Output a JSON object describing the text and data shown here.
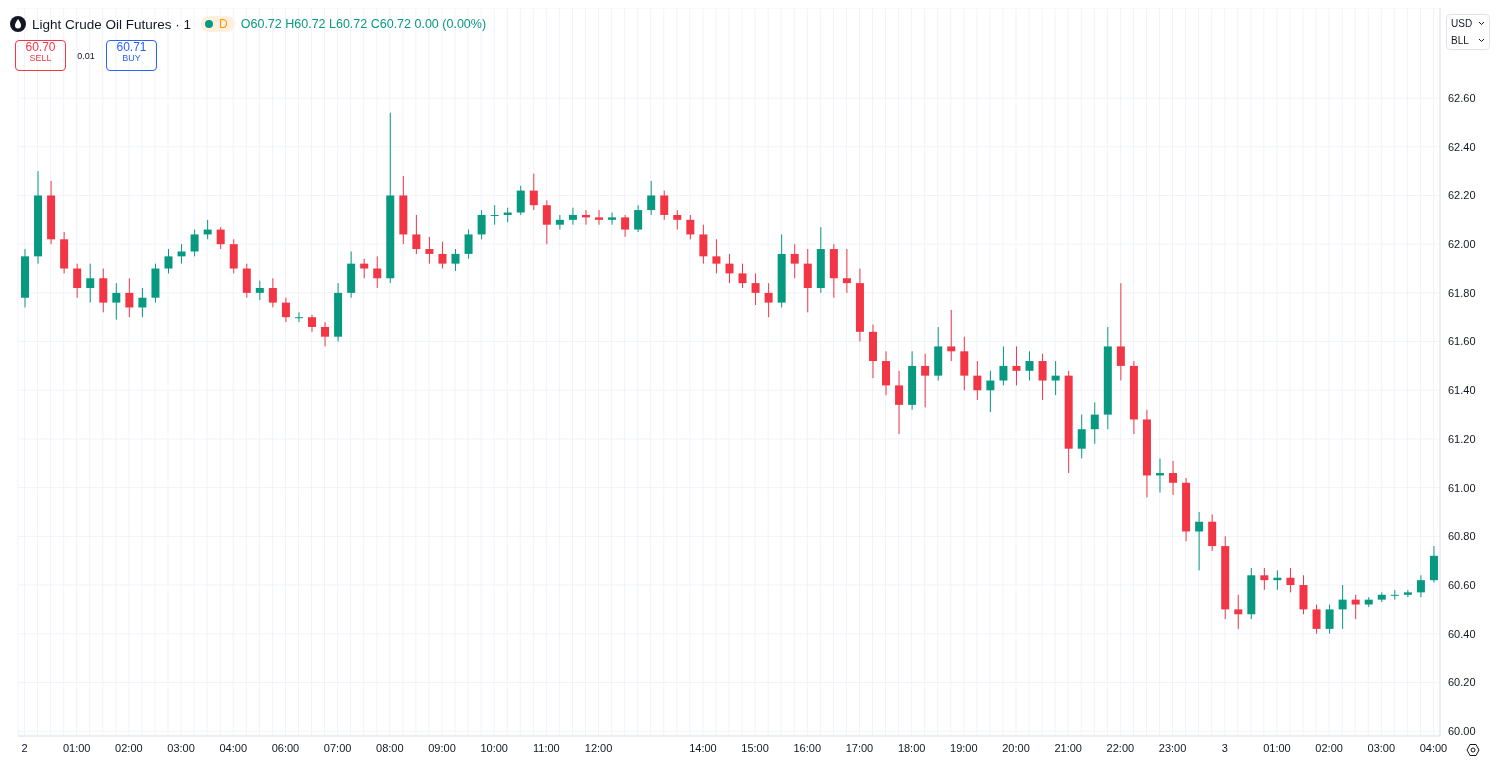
{
  "chart_data": {
    "type": "candlestick",
    "title": "Light Crude Oil Futures · 1",
    "annotations": [
      "D",
      "O60.72 H60.72 L60.72 C60.72 0.00 (0.00%)",
      "60.70",
      "SELL",
      "0.01",
      "60.71",
      "BUY",
      "USD",
      "BLL"
    ],
    "colors": [
      "#089981",
      "#089981",
      "#f23645",
      "#f23645",
      "#f23645",
      "#089981",
      "#f23645",
      "#089981",
      "#f23645",
      "#089981",
      "#089981",
      "#089981",
      "#089981",
      "#089981",
      "#089981",
      "#f23645",
      "#f23645",
      "#f23645",
      "#089981",
      "#f23645",
      "#f23645",
      "#089981",
      "#f23645",
      "#f23645",
      "#089981",
      "#089981",
      "#f23645",
      "#f23645",
      "#089981",
      "#f23645",
      "#f23645",
      "#f23645",
      "#f23645",
      "#089981",
      "#089981",
      "#089981",
      "#089981",
      "#089981",
      "#089981",
      "#f23645",
      "#f23645",
      "#089981",
      "#089981",
      "#f23645",
      "#f23645",
      "#089981",
      "#f23645",
      "#089981",
      "#089981",
      "#f23645",
      "#f23645",
      "#f23645",
      "#f23645",
      "#f23645",
      "#f23645",
      "#f23645",
      "#f23645",
      "#f23645",
      "#089981",
      "#f23645",
      "#f23645",
      "#089981",
      "#f23645",
      "#f23645",
      "#f23645",
      "#f23645",
      "#f23645",
      "#f23645",
      "#089981",
      "#f23645",
      "#089981",
      "#f23645",
      "#f23645",
      "#f23645",
      "#089981",
      "#089981",
      "#f23645",
      "#089981",
      "#f23645",
      "#089981",
      "#f23645",
      "#089981",
      "#089981",
      "#089981",
      "#f23645",
      "#f23645",
      "#f23645",
      "#089981",
      "#f23645",
      "#f23645",
      "#089981",
      "#f23645",
      "#f23645",
      "#f23645",
      "#089981",
      "#f23645",
      "#089981",
      "#f23645",
      "#f23645",
      "#f23645",
      "#089981",
      "#089981",
      "#f23645",
      "#089981",
      "#089981",
      "#089981",
      "#089981",
      "#089981",
      "#089981"
    ],
    "categories": [
      "2",
      null,
      null,
      null,
      "01:00",
      null,
      null,
      null,
      "02:00",
      null,
      null,
      null,
      "03:00",
      null,
      null,
      null,
      "04:00",
      null,
      null,
      null,
      "06:00",
      null,
      null,
      null,
      "07:00",
      null,
      null,
      null,
      "08:00",
      null,
      null,
      null,
      "09:00",
      null,
      null,
      null,
      "10:00",
      null,
      null,
      null,
      "11:00",
      null,
      null,
      null,
      "12:00",
      null,
      null,
      null,
      null,
      null,
      null,
      null,
      "14:00",
      null,
      null,
      null,
      "15:00",
      null,
      null,
      null,
      "16:00",
      null,
      null,
      null,
      "17:00",
      null,
      null,
      null,
      "18:00",
      null,
      null,
      null,
      "19:00",
      null,
      null,
      null,
      "20:00",
      null,
      null,
      null,
      "21:00",
      null,
      null,
      null,
      "22:00",
      null,
      null,
      null,
      "23:00",
      null,
      null,
      null,
      "3",
      null,
      null,
      null,
      "01:00",
      null,
      null,
      null,
      "02:00",
      null,
      null,
      null,
      "03:00",
      null,
      null,
      null,
      "04:00"
    ],
    "ohlc": [
      [
        61.78,
        61.98,
        61.74,
        61.95
      ],
      [
        61.95,
        62.3,
        61.92,
        62.2
      ],
      [
        62.2,
        62.26,
        62.0,
        62.02
      ],
      [
        62.02,
        62.05,
        61.88,
        61.9
      ],
      [
        61.9,
        61.92,
        61.78,
        61.82
      ],
      [
        61.82,
        61.92,
        61.76,
        61.86
      ],
      [
        61.86,
        61.9,
        61.72,
        61.76
      ],
      [
        61.76,
        61.84,
        61.69,
        61.8
      ],
      [
        61.8,
        61.86,
        61.7,
        61.74
      ],
      [
        61.74,
        61.82,
        61.7,
        61.78
      ],
      [
        61.78,
        61.92,
        61.76,
        61.9
      ],
      [
        61.9,
        61.98,
        61.88,
        61.95
      ],
      [
        61.95,
        62.0,
        61.92,
        61.97
      ],
      [
        61.97,
        62.06,
        61.95,
        62.04
      ],
      [
        62.04,
        62.1,
        62.02,
        62.06
      ],
      [
        62.06,
        62.07,
        61.98,
        62.0
      ],
      [
        62.0,
        62.02,
        61.88,
        61.9
      ],
      [
        61.9,
        61.92,
        61.78,
        61.8
      ],
      [
        61.8,
        61.85,
        61.77,
        61.82
      ],
      [
        61.82,
        61.86,
        61.74,
        61.76
      ],
      [
        61.76,
        61.78,
        61.68,
        61.7
      ],
      [
        61.7,
        61.72,
        61.68,
        61.7
      ],
      [
        61.7,
        61.71,
        61.64,
        61.66
      ],
      [
        61.66,
        61.68,
        61.58,
        61.62
      ],
      [
        61.62,
        61.84,
        61.6,
        61.8
      ],
      [
        61.8,
        61.97,
        61.78,
        61.92
      ],
      [
        61.92,
        61.94,
        61.86,
        61.9
      ],
      [
        61.9,
        61.95,
        61.82,
        61.86
      ],
      [
        61.86,
        62.54,
        61.84,
        62.2
      ],
      [
        62.2,
        62.28,
        62.0,
        62.04
      ],
      [
        62.04,
        62.12,
        61.96,
        61.98
      ],
      [
        61.98,
        62.03,
        61.92,
        61.96
      ],
      [
        61.96,
        62.01,
        61.9,
        61.92
      ],
      [
        61.92,
        61.98,
        61.89,
        61.96
      ],
      [
        61.96,
        62.06,
        61.94,
        62.04
      ],
      [
        62.04,
        62.14,
        62.02,
        62.12
      ],
      [
        62.12,
        62.16,
        62.08,
        62.12
      ],
      [
        62.12,
        62.15,
        62.09,
        62.13
      ],
      [
        62.13,
        62.24,
        62.12,
        62.22
      ],
      [
        62.22,
        62.29,
        62.14,
        62.16
      ],
      [
        62.16,
        62.18,
        62.0,
        62.08
      ],
      [
        62.08,
        62.12,
        62.06,
        62.1
      ],
      [
        62.1,
        62.15,
        62.08,
        62.12
      ],
      [
        62.12,
        62.14,
        62.08,
        62.11
      ],
      [
        62.11,
        62.14,
        62.08,
        62.1
      ],
      [
        62.1,
        62.13,
        62.08,
        62.11
      ],
      [
        62.11,
        62.12,
        62.03,
        62.06
      ],
      [
        62.06,
        62.16,
        62.05,
        62.14
      ],
      [
        62.14,
        62.26,
        62.12,
        62.2
      ],
      [
        62.2,
        62.22,
        62.1,
        62.12
      ],
      [
        62.12,
        62.14,
        62.06,
        62.1
      ],
      [
        62.1,
        62.12,
        62.02,
        62.04
      ],
      [
        62.04,
        62.08,
        61.92,
        61.95
      ],
      [
        61.95,
        62.02,
        61.88,
        61.92
      ],
      [
        61.92,
        61.96,
        61.84,
        61.88
      ],
      [
        61.88,
        61.92,
        61.82,
        61.84
      ],
      [
        61.84,
        61.88,
        61.75,
        61.8
      ],
      [
        61.8,
        61.84,
        61.7,
        61.76
      ],
      [
        61.76,
        62.04,
        61.74,
        61.96
      ],
      [
        61.96,
        62.0,
        61.86,
        61.92
      ],
      [
        61.92,
        61.98,
        61.72,
        61.82
      ],
      [
        61.82,
        62.07,
        61.8,
        61.98
      ],
      [
        61.98,
        62.0,
        61.78,
        61.86
      ],
      [
        61.86,
        61.98,
        61.8,
        61.84
      ],
      [
        61.84,
        61.9,
        61.6,
        61.64
      ],
      [
        61.64,
        61.67,
        61.45,
        61.52
      ],
      [
        61.52,
        61.56,
        61.38,
        61.42
      ],
      [
        61.42,
        61.48,
        61.22,
        61.34
      ],
      [
        61.34,
        61.56,
        61.32,
        61.5
      ],
      [
        61.5,
        61.55,
        61.33,
        61.46
      ],
      [
        61.46,
        61.66,
        61.44,
        61.58
      ],
      [
        61.58,
        61.73,
        61.52,
        61.56
      ],
      [
        61.56,
        61.62,
        61.4,
        61.46
      ],
      [
        61.46,
        61.52,
        61.36,
        61.4
      ],
      [
        61.4,
        61.48,
        61.31,
        61.44
      ],
      [
        61.44,
        61.58,
        61.42,
        61.5
      ],
      [
        61.5,
        61.58,
        61.42,
        61.48
      ],
      [
        61.48,
        61.56,
        61.44,
        61.52
      ],
      [
        61.52,
        61.55,
        61.36,
        61.44
      ],
      [
        61.44,
        61.52,
        61.38,
        61.46
      ],
      [
        61.46,
        61.48,
        61.06,
        61.16
      ],
      [
        61.16,
        61.3,
        61.12,
        61.24
      ],
      [
        61.24,
        61.35,
        61.18,
        61.3
      ],
      [
        61.3,
        61.66,
        61.24,
        61.58
      ],
      [
        61.58,
        61.84,
        61.44,
        61.5
      ],
      [
        61.5,
        61.52,
        61.22,
        61.28
      ],
      [
        61.28,
        61.32,
        60.96,
        61.05
      ],
      [
        61.05,
        61.12,
        60.98,
        61.06
      ],
      [
        61.06,
        61.11,
        60.97,
        61.02
      ],
      [
        61.02,
        61.04,
        60.78,
        60.82
      ],
      [
        60.82,
        60.9,
        60.66,
        60.86
      ],
      [
        60.86,
        60.89,
        60.74,
        60.76
      ],
      [
        60.76,
        60.8,
        60.46,
        60.5
      ],
      [
        60.5,
        60.56,
        60.42,
        60.48
      ],
      [
        60.48,
        60.67,
        60.46,
        60.64
      ],
      [
        60.64,
        60.67,
        60.58,
        60.62
      ],
      [
        60.62,
        60.66,
        60.58,
        60.63
      ],
      [
        60.63,
        60.67,
        60.57,
        60.6
      ],
      [
        60.6,
        60.64,
        60.48,
        60.5
      ],
      [
        60.5,
        60.52,
        60.4,
        60.42
      ],
      [
        60.42,
        60.52,
        60.4,
        60.5
      ],
      [
        60.5,
        60.6,
        60.42,
        60.54
      ],
      [
        60.54,
        60.56,
        60.46,
        60.52
      ],
      [
        60.52,
        60.55,
        60.51,
        60.54
      ],
      [
        60.54,
        60.57,
        60.53,
        60.56
      ],
      [
        60.56,
        60.58,
        60.54,
        60.56
      ],
      [
        60.56,
        60.58,
        60.55,
        60.57
      ],
      [
        60.57,
        60.64,
        60.55,
        60.62
      ],
      [
        60.62,
        60.76,
        60.61,
        60.72
      ]
    ],
    "ylim": [
      59.98,
      62.97
    ],
    "yticks": [
      {
        "value": 60,
        "label": "60.00"
      },
      {
        "value": 60.2,
        "label": "60.20"
      },
      {
        "value": 60.4,
        "label": "60.40"
      },
      {
        "value": 60.6,
        "label": "60.60"
      },
      {
        "value": 60.8,
        "label": "60.80"
      },
      {
        "value": 61,
        "label": "61.00"
      },
      {
        "value": 61.2,
        "label": "61.20"
      },
      {
        "value": 61.4,
        "label": "61.40"
      },
      {
        "value": 61.6,
        "label": "61.60"
      },
      {
        "value": 61.8,
        "label": "61.80"
      },
      {
        "value": 62,
        "label": "62.00"
      },
      {
        "value": 62.2,
        "label": "62.20"
      },
      {
        "value": 62.4,
        "label": "62.40"
      },
      {
        "value": 62.6,
        "label": "62.60"
      }
    ],
    "grid": true
  }
}
